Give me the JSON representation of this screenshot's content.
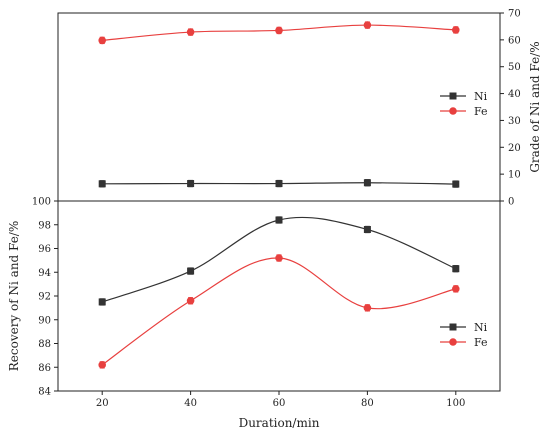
{
  "chart_data": [
    {
      "type": "line",
      "ylabel": "Grade of Ni and Fe/%",
      "y_axis_side": "right",
      "ylim": [
        0,
        70
      ],
      "yticks": [
        "0",
        "10",
        "20",
        "30",
        "40",
        "50",
        "60",
        "70"
      ],
      "x": [
        20,
        40,
        60,
        80,
        100
      ],
      "legend_position": "right-middle",
      "series": [
        {
          "name": "Ni",
          "color": "#333333",
          "marker": "square",
          "values": [
            6.4,
            6.5,
            6.5,
            6.8,
            6.3
          ]
        },
        {
          "name": "Fe",
          "color": "#e8403f",
          "marker": "circle",
          "values": [
            59.8,
            62.9,
            63.5,
            65.5,
            63.7
          ]
        }
      ],
      "error_bars": true
    },
    {
      "type": "line",
      "ylabel": "Recovery of Ni and Fe/%",
      "y_axis_side": "left",
      "ylim": [
        84,
        100
      ],
      "yticks": [
        "84",
        "86",
        "88",
        "90",
        "92",
        "94",
        "96",
        "98",
        "100"
      ],
      "xlabel": "Duration/min",
      "x": [
        20,
        40,
        60,
        80,
        100
      ],
      "xticks": [
        "20",
        "40",
        "60",
        "80",
        "100"
      ],
      "legend_position": "right-lower",
      "series": [
        {
          "name": "Ni",
          "color": "#333333",
          "marker": "square",
          "values": [
            91.5,
            94.1,
            98.4,
            97.6,
            94.3
          ]
        },
        {
          "name": "Fe",
          "color": "#e8403f",
          "marker": "circle",
          "values": [
            86.2,
            91.6,
            95.2,
            91.0,
            92.6
          ]
        }
      ],
      "error_bars": true
    }
  ]
}
